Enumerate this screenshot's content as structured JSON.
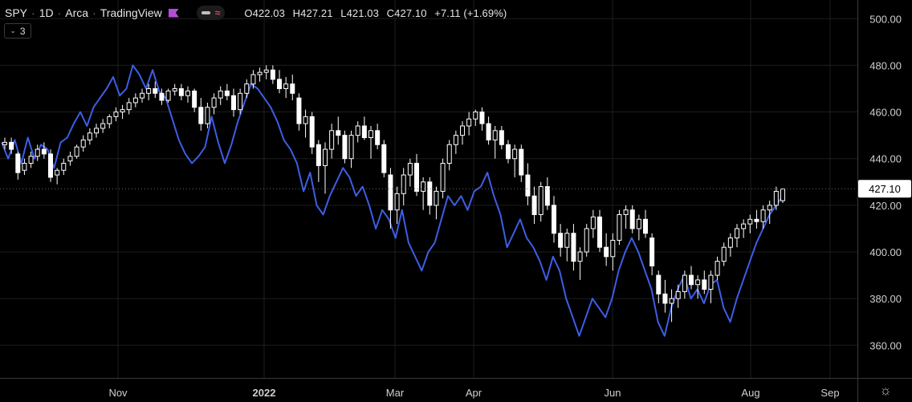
{
  "header": {
    "symbol": "SPY",
    "interval": "1D",
    "exchange": "Arca",
    "source": "TradingView",
    "open": "O422.03",
    "high": "H427.21",
    "low": "L421.03",
    "close": "C427.10",
    "change": "+7.11 (+1.69%)",
    "indicator_count": "3"
  },
  "colors": {
    "background": "#000000",
    "candle": "#ffffff",
    "line": "#3d5ee6",
    "flag": "#b24fd6",
    "grid": "#1e1e1e"
  },
  "chart_data": {
    "type": "candlestick",
    "title": "SPY · 1D · Arca · TradingView",
    "y_ticks": [
      360,
      380,
      400,
      420,
      440,
      460,
      480,
      500
    ],
    "y_tick_labels": [
      "360.00",
      "380.00",
      "400.00",
      "420.00",
      "440.00",
      "460.00",
      "480.00",
      "500.00"
    ],
    "ylim": [
      346,
      508
    ],
    "x_labels": [
      "Nov",
      "2022",
      "Mar",
      "Apr",
      "Jun",
      "Aug",
      "Sep"
    ],
    "last_price_label": "427.10",
    "last_price": 427.1,
    "grid": true,
    "series": [
      {
        "kind": "candles",
        "values": [
          [
            446,
            449,
            444,
            447
          ],
          [
            447,
            449,
            442,
            444
          ],
          [
            442,
            443,
            431,
            434
          ],
          [
            435,
            440,
            433,
            438
          ],
          [
            438,
            443,
            436,
            441
          ],
          [
            441,
            446,
            439,
            444
          ],
          [
            444,
            447,
            440,
            442
          ],
          [
            442,
            444,
            430,
            432
          ],
          [
            433,
            436,
            429,
            435
          ],
          [
            435,
            440,
            433,
            438
          ],
          [
            439,
            443,
            437,
            441
          ],
          [
            441,
            446,
            440,
            445
          ],
          [
            445,
            450,
            443,
            448
          ],
          [
            448,
            453,
            446,
            451
          ],
          [
            451,
            455,
            449,
            453
          ],
          [
            453,
            457,
            451,
            455
          ],
          [
            455,
            459,
            453,
            458
          ],
          [
            458,
            462,
            456,
            460
          ],
          [
            460,
            463,
            457,
            461
          ],
          [
            461,
            466,
            459,
            464
          ],
          [
            464,
            468,
            462,
            466
          ],
          [
            466,
            470,
            464,
            468
          ],
          [
            468,
            472,
            465,
            470
          ],
          [
            470,
            473,
            466,
            468
          ],
          [
            468,
            470,
            463,
            465
          ],
          [
            465,
            470,
            464,
            469
          ],
          [
            469,
            472,
            467,
            470
          ],
          [
            470,
            472,
            465,
            467
          ],
          [
            467,
            471,
            464,
            469
          ],
          [
            469,
            470,
            460,
            462
          ],
          [
            462,
            466,
            452,
            455
          ],
          [
            455,
            464,
            453,
            462
          ],
          [
            462,
            468,
            459,
            466
          ],
          [
            466,
            471,
            463,
            469
          ],
          [
            469,
            472,
            465,
            467
          ],
          [
            467,
            470,
            458,
            461
          ],
          [
            461,
            470,
            459,
            468
          ],
          [
            468,
            474,
            466,
            472
          ],
          [
            472,
            478,
            470,
            476
          ],
          [
            476,
            479,
            473,
            477
          ],
          [
            477,
            480,
            474,
            478
          ],
          [
            478,
            480,
            472,
            474
          ],
          [
            474,
            478,
            468,
            470
          ],
          [
            470,
            475,
            466,
            472
          ],
          [
            472,
            476,
            465,
            468
          ],
          [
            466,
            468,
            452,
            455
          ],
          [
            455,
            461,
            449,
            458
          ],
          [
            458,
            460,
            442,
            445
          ],
          [
            446,
            448,
            430,
            437
          ],
          [
            437,
            447,
            425,
            444
          ],
          [
            444,
            455,
            440,
            452
          ],
          [
            452,
            458,
            446,
            450
          ],
          [
            450,
            452,
            438,
            440
          ],
          [
            440,
            452,
            436,
            450
          ],
          [
            450,
            456,
            447,
            454
          ],
          [
            454,
            458,
            448,
            449
          ],
          [
            449,
            454,
            440,
            452
          ],
          [
            452,
            455,
            444,
            446
          ],
          [
            446,
            448,
            432,
            434
          ],
          [
            433,
            436,
            410,
            418
          ],
          [
            418,
            428,
            412,
            425
          ],
          [
            425,
            436,
            420,
            433
          ],
          [
            433,
            440,
            428,
            438
          ],
          [
            438,
            442,
            424,
            426
          ],
          [
            426,
            432,
            418,
            430
          ],
          [
            430,
            432,
            416,
            420
          ],
          [
            420,
            428,
            414,
            426
          ],
          [
            426,
            440,
            423,
            438
          ],
          [
            438,
            448,
            435,
            446
          ],
          [
            446,
            452,
            442,
            450
          ],
          [
            450,
            456,
            446,
            454
          ],
          [
            454,
            460,
            450,
            457
          ],
          [
            457,
            461,
            454,
            460
          ],
          [
            460,
            462,
            452,
            455
          ],
          [
            455,
            458,
            446,
            448
          ],
          [
            448,
            454,
            440,
            452
          ],
          [
            452,
            454,
            444,
            446
          ],
          [
            446,
            448,
            438,
            440
          ],
          [
            440,
            446,
            432,
            444
          ],
          [
            444,
            446,
            430,
            433
          ],
          [
            433,
            438,
            420,
            424
          ],
          [
            424,
            428,
            412,
            416
          ],
          [
            416,
            430,
            413,
            428
          ],
          [
            428,
            432,
            418,
            420
          ],
          [
            420,
            424,
            404,
            408
          ],
          [
            408,
            412,
            398,
            402
          ],
          [
            402,
            410,
            396,
            408
          ],
          [
            408,
            412,
            392,
            396
          ],
          [
            396,
            402,
            388,
            400
          ],
          [
            400,
            412,
            398,
            410
          ],
          [
            410,
            418,
            406,
            415
          ],
          [
            415,
            418,
            400,
            402
          ],
          [
            402,
            408,
            394,
            398
          ],
          [
            398,
            408,
            392,
            405
          ],
          [
            405,
            418,
            403,
            416
          ],
          [
            416,
            420,
            410,
            418
          ],
          [
            418,
            420,
            408,
            410
          ],
          [
            410,
            416,
            405,
            414
          ],
          [
            414,
            418,
            406,
            408
          ],
          [
            406,
            408,
            390,
            394
          ],
          [
            390,
            392,
            378,
            382
          ],
          [
            382,
            388,
            374,
            378
          ],
          [
            378,
            384,
            370,
            380
          ],
          [
            380,
            386,
            376,
            383
          ],
          [
            383,
            392,
            380,
            390
          ],
          [
            390,
            394,
            384,
            386
          ],
          [
            386,
            390,
            380,
            388
          ],
          [
            388,
            392,
            382,
            384
          ],
          [
            384,
            392,
            378,
            390
          ],
          [
            390,
            398,
            388,
            396
          ],
          [
            396,
            404,
            394,
            402
          ],
          [
            402,
            408,
            398,
            406
          ],
          [
            406,
            412,
            402,
            410
          ],
          [
            410,
            414,
            406,
            412
          ],
          [
            412,
            416,
            408,
            414
          ],
          [
            414,
            418,
            410,
            413
          ],
          [
            413,
            420,
            410,
            418
          ],
          [
            418,
            422,
            412,
            420
          ],
          [
            420,
            428,
            418,
            426
          ],
          [
            422,
            427,
            421,
            427
          ]
        ]
      },
      {
        "kind": "line",
        "name": "comparison",
        "values": [
          447,
          440,
          448,
          438,
          449,
          440,
          446,
          444,
          436,
          447,
          449,
          455,
          460,
          454,
          462,
          466,
          470,
          475,
          467,
          470,
          480,
          476,
          470,
          478,
          469,
          466,
          457,
          448,
          442,
          438,
          441,
          445,
          458,
          447,
          438,
          446,
          456,
          464,
          472,
          470,
          466,
          462,
          456,
          448,
          444,
          438,
          426,
          434,
          420,
          416,
          424,
          430,
          436,
          432,
          424,
          428,
          420,
          410,
          418,
          414,
          406,
          418,
          404,
          398,
          392,
          400,
          404,
          414,
          424,
          420,
          424,
          418,
          426,
          428,
          434,
          424,
          416,
          402,
          408,
          414,
          406,
          402,
          396,
          388,
          398,
          392,
          380,
          372,
          364,
          372,
          380,
          376,
          372,
          380,
          392,
          400,
          406,
          400,
          392,
          384,
          370,
          364,
          376,
          384,
          390,
          380,
          384,
          378,
          386,
          388,
          376,
          370,
          380,
          388,
          396,
          404,
          410,
          416,
          420,
          424
        ]
      }
    ]
  }
}
